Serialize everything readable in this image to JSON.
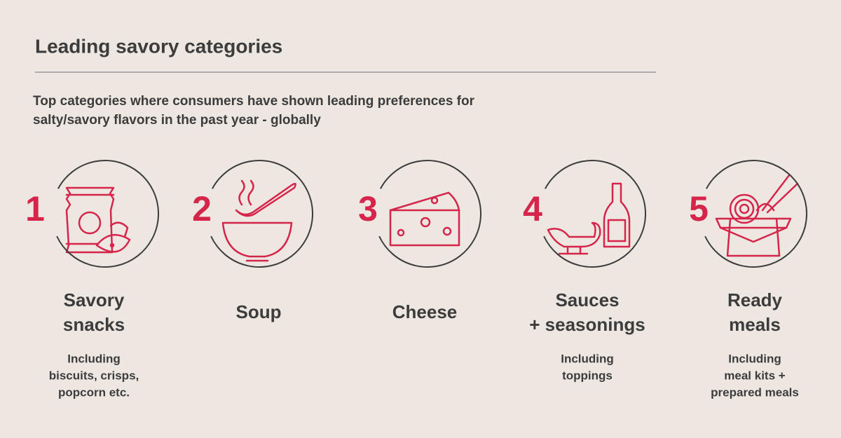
{
  "header": {
    "title": "Leading savory categories",
    "subtitle_lines": [
      "Top categories where consumers have shown leading preferences for",
      "salty/savory flavors in the past year - globally"
    ]
  },
  "items": [
    {
      "number": 1,
      "label_lines": [
        "Savory",
        "snacks"
      ],
      "note_lines": [
        "Including",
        "biscuits, crisps,",
        "popcorn etc."
      ]
    },
    {
      "number": 2,
      "label_lines": [
        "Soup"
      ],
      "note_lines": []
    },
    {
      "number": 3,
      "label_lines": [
        "Cheese"
      ],
      "note_lines": []
    },
    {
      "number": 4,
      "label_lines": [
        "Sauces",
        "+ seasonings"
      ],
      "note_lines": [
        "Including",
        "toppings"
      ]
    },
    {
      "number": 5,
      "label_lines": [
        "Ready",
        "meals"
      ],
      "note_lines": [
        "Including",
        "meal kits +",
        "prepared meals"
      ]
    }
  ]
}
